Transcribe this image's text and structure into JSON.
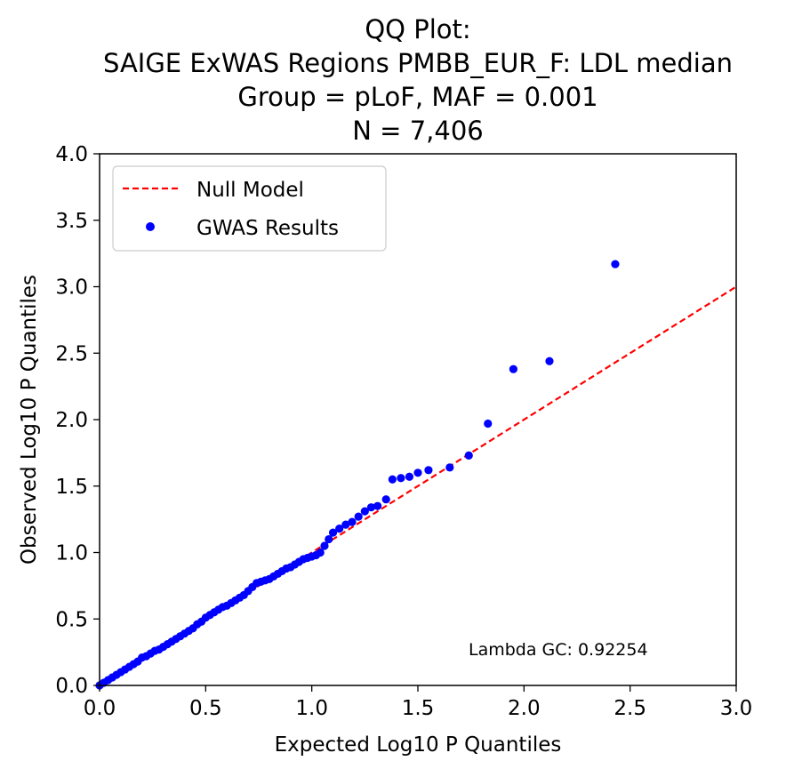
{
  "chart_data": {
    "type": "scatter",
    "title_lines": [
      "QQ Plot:",
      "SAIGE ExWAS Regions PMBB_EUR_F: LDL median",
      "Group = pLoF, MAF = 0.001",
      "N = 7,406"
    ],
    "xlabel": "Expected Log10 P Quantiles",
    "ylabel": "Observed Log10 P Quantiles",
    "xlim": [
      0,
      3.0
    ],
    "ylim": [
      0,
      4.0
    ],
    "x_ticks": [
      "0.0",
      "0.5",
      "1.0",
      "1.5",
      "2.0",
      "2.5",
      "3.0"
    ],
    "y_ticks": [
      "0.0",
      "0.5",
      "1.0",
      "1.5",
      "2.0",
      "2.5",
      "3.0",
      "3.5",
      "4.0"
    ],
    "grid": false,
    "legend_position": "top-left",
    "annotation": "Lambda GC: 0.92254",
    "series": [
      {
        "name": "Null Model",
        "type": "line",
        "style": "dashed",
        "color": "#ff0000",
        "x": [
          0,
          3.0
        ],
        "y": [
          0,
          3.0
        ]
      },
      {
        "name": "GWAS Results",
        "type": "scatter",
        "color": "#0000ff",
        "x": [
          0.0,
          0.02,
          0.04,
          0.06,
          0.08,
          0.1,
          0.12,
          0.14,
          0.16,
          0.18,
          0.2,
          0.22,
          0.24,
          0.26,
          0.28,
          0.3,
          0.32,
          0.34,
          0.36,
          0.38,
          0.4,
          0.42,
          0.44,
          0.46,
          0.48,
          0.5,
          0.52,
          0.54,
          0.56,
          0.58,
          0.6,
          0.62,
          0.64,
          0.66,
          0.68,
          0.7,
          0.72,
          0.74,
          0.76,
          0.78,
          0.8,
          0.82,
          0.84,
          0.86,
          0.88,
          0.9,
          0.92,
          0.94,
          0.96,
          0.98,
          1.0,
          1.02,
          1.04,
          1.06,
          1.08,
          1.1,
          1.13,
          1.16,
          1.19,
          1.22,
          1.25,
          1.28,
          1.31,
          1.35,
          1.38,
          1.42,
          1.46,
          1.5,
          1.55,
          1.65,
          1.74,
          1.83,
          1.95,
          2.12,
          2.43
        ],
        "y": [
          0.0,
          0.02,
          0.04,
          0.06,
          0.08,
          0.1,
          0.12,
          0.14,
          0.16,
          0.18,
          0.21,
          0.22,
          0.24,
          0.26,
          0.27,
          0.29,
          0.31,
          0.33,
          0.35,
          0.37,
          0.39,
          0.41,
          0.43,
          0.46,
          0.48,
          0.51,
          0.53,
          0.55,
          0.57,
          0.59,
          0.6,
          0.62,
          0.64,
          0.66,
          0.68,
          0.71,
          0.74,
          0.77,
          0.78,
          0.79,
          0.8,
          0.82,
          0.84,
          0.86,
          0.88,
          0.89,
          0.91,
          0.93,
          0.95,
          0.96,
          0.97,
          0.98,
          1.0,
          1.05,
          1.1,
          1.15,
          1.18,
          1.21,
          1.23,
          1.27,
          1.31,
          1.34,
          1.35,
          1.4,
          1.55,
          1.56,
          1.57,
          1.6,
          1.62,
          1.64,
          1.73,
          1.97,
          2.38,
          2.44,
          3.17
        ]
      }
    ]
  }
}
